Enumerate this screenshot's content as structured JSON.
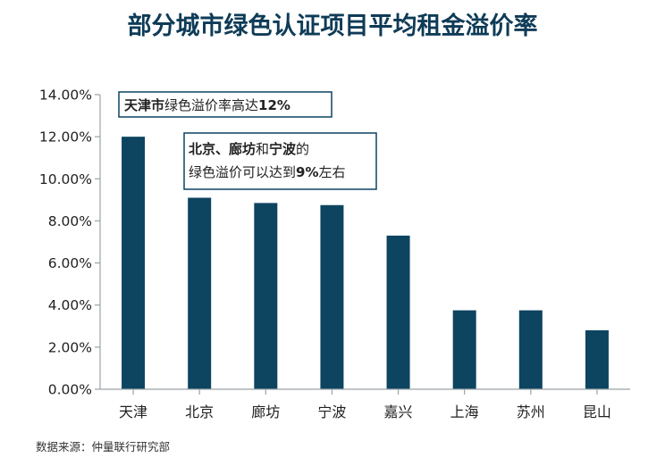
{
  "chart_data": {
    "type": "bar",
    "title": "部分城市绿色认证项目平均租金溢价率",
    "categories": [
      "天津",
      "北京",
      "廊坊",
      "宁波",
      "嘉兴",
      "上海",
      "苏州",
      "昆山"
    ],
    "values": [
      12.0,
      9.1,
      8.85,
      8.75,
      7.3,
      3.75,
      3.75,
      2.8
    ],
    "ylim": [
      0,
      14
    ],
    "yticks": [
      "0.00%",
      "2.00%",
      "4.00%",
      "6.00%",
      "8.00%",
      "10.00%",
      "12.00%",
      "14.00%"
    ],
    "xlabel": "",
    "ylabel": "",
    "grid": false,
    "colors": {
      "bar": "#0d4460",
      "axis": "#9aa3a8",
      "title": "#0e3b57"
    },
    "annotations": [
      {
        "id": "note1",
        "lines": [
          [
            {
              "text": "天津市",
              "bold": true
            },
            {
              "text": "绿色溢价率高达",
              "bold": false
            },
            {
              "text": "12%",
              "bold": true
            }
          ]
        ]
      },
      {
        "id": "note2",
        "lines": [
          [
            {
              "text": "北京、廊坊",
              "bold": true
            },
            {
              "text": "和",
              "bold": false
            },
            {
              "text": "宁波",
              "bold": true
            },
            {
              "text": "的",
              "bold": false
            }
          ],
          [
            {
              "text": "绿色溢价可以达到",
              "bold": false
            },
            {
              "text": "9%",
              "bold": true
            },
            {
              "text": "左右",
              "bold": false
            }
          ]
        ]
      }
    ]
  },
  "source": "数据来源：仲量联行研究部"
}
